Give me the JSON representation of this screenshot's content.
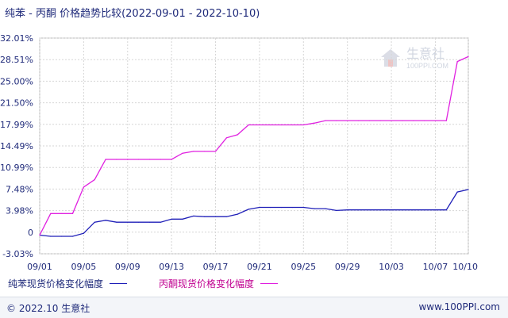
{
  "title": "纯苯 - 丙酮 价格趋势比较(2022-09-01 - 2022-10-10)",
  "footer": {
    "copyright": "© 2022.10 生意社",
    "url": "www.100PPI.com"
  },
  "watermark": {
    "name": "生意社",
    "domain": "100PPI.COM"
  },
  "colors": {
    "series1": "#1f1fb8",
    "series2": "#e020e0",
    "axis_text": "#1f2a7a",
    "grid": "#d0d0d0"
  },
  "chart_data": {
    "type": "line",
    "title": "纯苯 - 丙酮 价格趋势比较(2022-09-01 - 2022-10-10)",
    "xlabel": "",
    "ylabel": "",
    "grid": true,
    "legend_position": "bottom",
    "x_tick_labels": [
      "09/01",
      "09/05",
      "09/09",
      "09/13",
      "09/17",
      "09/21",
      "09/25",
      "09/29",
      "10/03",
      "10/07",
      "10/10"
    ],
    "y_tick_labels": [
      "32.01%",
      "28.51%",
      "25.00%",
      "21.50%",
      "17.99%",
      "14.49%",
      "10.99%",
      "7.48%",
      "3.98%",
      "0",
      "-3.03%"
    ],
    "ylim": [
      -3.03,
      32.01
    ],
    "x": [
      "09/01",
      "09/02",
      "09/03",
      "09/04",
      "09/05",
      "09/06",
      "09/07",
      "09/08",
      "09/09",
      "09/10",
      "09/11",
      "09/12",
      "09/13",
      "09/14",
      "09/15",
      "09/16",
      "09/17",
      "09/18",
      "09/19",
      "09/20",
      "09/21",
      "09/22",
      "09/23",
      "09/24",
      "09/25",
      "09/26",
      "09/27",
      "09/28",
      "09/29",
      "09/30",
      "10/01",
      "10/02",
      "10/03",
      "10/04",
      "10/05",
      "10/06",
      "10/07",
      "10/08",
      "10/09",
      "10/10"
    ],
    "series": [
      {
        "name": "纯苯现货价格变化幅度",
        "values": [
          0,
          -0.2,
          -0.2,
          -0.2,
          0.3,
          2.1,
          2.4,
          2.1,
          2.1,
          2.1,
          2.1,
          2.1,
          2.6,
          2.6,
          3.1,
          3.0,
          3.0,
          3.0,
          3.4,
          4.2,
          4.5,
          4.5,
          4.5,
          4.5,
          4.5,
          4.3,
          4.3,
          4.0,
          4.1,
          4.1,
          4.1,
          4.1,
          4.1,
          4.1,
          4.1,
          4.1,
          4.1,
          4.1,
          7.0,
          7.4
        ]
      },
      {
        "name": "丙酮现货价格变化幅度",
        "values": [
          0,
          3.5,
          3.5,
          3.5,
          7.8,
          9.0,
          12.3,
          12.3,
          12.3,
          12.3,
          12.3,
          12.3,
          12.3,
          13.3,
          13.6,
          13.6,
          13.6,
          15.8,
          16.3,
          17.9,
          17.9,
          17.9,
          17.9,
          17.9,
          17.9,
          18.2,
          18.6,
          18.6,
          18.6,
          18.6,
          18.6,
          18.6,
          18.6,
          18.6,
          18.6,
          18.6,
          18.6,
          18.6,
          28.2,
          29.0
        ]
      }
    ]
  }
}
